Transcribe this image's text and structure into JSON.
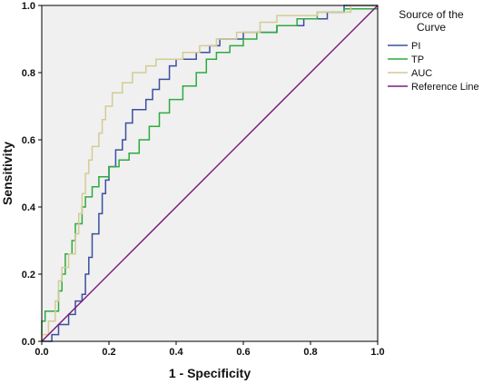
{
  "chart_data": {
    "type": "line",
    "xlabel": "1 - Specificity",
    "ylabel": "Sensitivity",
    "xlim": [
      0,
      1
    ],
    "ylim": [
      0,
      1
    ],
    "x_ticks": [
      "0.0",
      "0.2",
      "0.4",
      "0.6",
      "0.8",
      "1.0"
    ],
    "y_ticks": [
      "0.0",
      "0.2",
      "0.4",
      "0.6",
      "0.8",
      "1.0"
    ],
    "grid": false,
    "background_color": "#f0f0f0",
    "legend_position": "top-right, outside plot",
    "legend_title": "Source of the Curve",
    "series": [
      {
        "name": "PI",
        "color": "#3a4fa0",
        "points": [
          [
            0,
            0
          ],
          [
            0.03,
            0
          ],
          [
            0.03,
            0.02
          ],
          [
            0.05,
            0.02
          ],
          [
            0.05,
            0.05
          ],
          [
            0.08,
            0.05
          ],
          [
            0.08,
            0.08
          ],
          [
            0.1,
            0.08
          ],
          [
            0.1,
            0.12
          ],
          [
            0.12,
            0.12
          ],
          [
            0.12,
            0.14
          ],
          [
            0.13,
            0.14
          ],
          [
            0.13,
            0.2
          ],
          [
            0.14,
            0.2
          ],
          [
            0.14,
            0.25
          ],
          [
            0.15,
            0.25
          ],
          [
            0.15,
            0.32
          ],
          [
            0.17,
            0.32
          ],
          [
            0.17,
            0.38
          ],
          [
            0.18,
            0.38
          ],
          [
            0.18,
            0.44
          ],
          [
            0.19,
            0.44
          ],
          [
            0.19,
            0.48
          ],
          [
            0.2,
            0.48
          ],
          [
            0.2,
            0.52
          ],
          [
            0.22,
            0.52
          ],
          [
            0.22,
            0.57
          ],
          [
            0.24,
            0.57
          ],
          [
            0.24,
            0.6
          ],
          [
            0.25,
            0.6
          ],
          [
            0.25,
            0.65
          ],
          [
            0.27,
            0.65
          ],
          [
            0.27,
            0.69
          ],
          [
            0.31,
            0.69
          ],
          [
            0.31,
            0.72
          ],
          [
            0.33,
            0.72
          ],
          [
            0.33,
            0.75
          ],
          [
            0.35,
            0.75
          ],
          [
            0.35,
            0.78
          ],
          [
            0.38,
            0.78
          ],
          [
            0.38,
            0.82
          ],
          [
            0.4,
            0.82
          ],
          [
            0.4,
            0.84
          ],
          [
            0.46,
            0.84
          ],
          [
            0.46,
            0.86
          ],
          [
            0.5,
            0.86
          ],
          [
            0.5,
            0.88
          ],
          [
            0.53,
            0.88
          ],
          [
            0.53,
            0.9
          ],
          [
            0.6,
            0.9
          ],
          [
            0.6,
            0.92
          ],
          [
            0.7,
            0.92
          ],
          [
            0.7,
            0.94
          ],
          [
            0.78,
            0.94
          ],
          [
            0.78,
            0.96
          ],
          [
            0.85,
            0.96
          ],
          [
            0.85,
            0.98
          ],
          [
            0.9,
            0.98
          ],
          [
            0.9,
            1.0
          ],
          [
            1.0,
            1.0
          ]
        ]
      },
      {
        "name": "TP",
        "color": "#2eaa3f",
        "points": [
          [
            0,
            0
          ],
          [
            0,
            0.06
          ],
          [
            0.01,
            0.06
          ],
          [
            0.01,
            0.09
          ],
          [
            0.05,
            0.09
          ],
          [
            0.05,
            0.15
          ],
          [
            0.06,
            0.15
          ],
          [
            0.06,
            0.2
          ],
          [
            0.07,
            0.2
          ],
          [
            0.07,
            0.26
          ],
          [
            0.09,
            0.26
          ],
          [
            0.09,
            0.3
          ],
          [
            0.1,
            0.3
          ],
          [
            0.1,
            0.35
          ],
          [
            0.12,
            0.35
          ],
          [
            0.12,
            0.4
          ],
          [
            0.13,
            0.4
          ],
          [
            0.13,
            0.43
          ],
          [
            0.15,
            0.43
          ],
          [
            0.15,
            0.46
          ],
          [
            0.17,
            0.46
          ],
          [
            0.17,
            0.49
          ],
          [
            0.2,
            0.49
          ],
          [
            0.2,
            0.52
          ],
          [
            0.23,
            0.52
          ],
          [
            0.23,
            0.54
          ],
          [
            0.26,
            0.54
          ],
          [
            0.26,
            0.56
          ],
          [
            0.29,
            0.56
          ],
          [
            0.29,
            0.6
          ],
          [
            0.32,
            0.6
          ],
          [
            0.32,
            0.64
          ],
          [
            0.35,
            0.64
          ],
          [
            0.35,
            0.68
          ],
          [
            0.38,
            0.68
          ],
          [
            0.38,
            0.72
          ],
          [
            0.42,
            0.72
          ],
          [
            0.42,
            0.76
          ],
          [
            0.46,
            0.76
          ],
          [
            0.46,
            0.8
          ],
          [
            0.49,
            0.8
          ],
          [
            0.49,
            0.84
          ],
          [
            0.52,
            0.84
          ],
          [
            0.52,
            0.86
          ],
          [
            0.56,
            0.86
          ],
          [
            0.56,
            0.88
          ],
          [
            0.6,
            0.88
          ],
          [
            0.6,
            0.9
          ],
          [
            0.64,
            0.9
          ],
          [
            0.64,
            0.92
          ],
          [
            0.7,
            0.92
          ],
          [
            0.7,
            0.94
          ],
          [
            0.76,
            0.94
          ],
          [
            0.76,
            0.96
          ],
          [
            0.82,
            0.96
          ],
          [
            0.82,
            0.98
          ],
          [
            0.9,
            0.98
          ],
          [
            0.9,
            0.99
          ],
          [
            1.0,
            0.99
          ]
        ]
      },
      {
        "name": "AUC",
        "color": "#d2cc94",
        "points": [
          [
            0,
            0
          ],
          [
            0,
            0.02
          ],
          [
            0.02,
            0.02
          ],
          [
            0.02,
            0.06
          ],
          [
            0.04,
            0.06
          ],
          [
            0.04,
            0.12
          ],
          [
            0.05,
            0.12
          ],
          [
            0.05,
            0.18
          ],
          [
            0.06,
            0.18
          ],
          [
            0.06,
            0.22
          ],
          [
            0.08,
            0.22
          ],
          [
            0.08,
            0.26
          ],
          [
            0.1,
            0.26
          ],
          [
            0.1,
            0.32
          ],
          [
            0.11,
            0.32
          ],
          [
            0.11,
            0.38
          ],
          [
            0.12,
            0.38
          ],
          [
            0.12,
            0.44
          ],
          [
            0.13,
            0.44
          ],
          [
            0.13,
            0.5
          ],
          [
            0.14,
            0.5
          ],
          [
            0.14,
            0.54
          ],
          [
            0.15,
            0.54
          ],
          [
            0.15,
            0.58
          ],
          [
            0.17,
            0.58
          ],
          [
            0.17,
            0.62
          ],
          [
            0.18,
            0.62
          ],
          [
            0.18,
            0.66
          ],
          [
            0.19,
            0.66
          ],
          [
            0.19,
            0.7
          ],
          [
            0.21,
            0.7
          ],
          [
            0.21,
            0.74
          ],
          [
            0.24,
            0.74
          ],
          [
            0.24,
            0.77
          ],
          [
            0.27,
            0.77
          ],
          [
            0.27,
            0.8
          ],
          [
            0.31,
            0.8
          ],
          [
            0.31,
            0.82
          ],
          [
            0.34,
            0.82
          ],
          [
            0.34,
            0.84
          ],
          [
            0.42,
            0.84
          ],
          [
            0.42,
            0.86
          ],
          [
            0.47,
            0.86
          ],
          [
            0.47,
            0.88
          ],
          [
            0.52,
            0.88
          ],
          [
            0.52,
            0.9
          ],
          [
            0.58,
            0.9
          ],
          [
            0.58,
            0.92
          ],
          [
            0.65,
            0.92
          ],
          [
            0.65,
            0.95
          ],
          [
            0.7,
            0.95
          ],
          [
            0.7,
            0.97
          ],
          [
            0.82,
            0.97
          ],
          [
            0.82,
            0.98
          ],
          [
            0.92,
            0.98
          ],
          [
            0.92,
            1.0
          ],
          [
            1.0,
            1.0
          ]
        ]
      },
      {
        "name": "Reference Line",
        "color": "#7d1a7d",
        "points": [
          [
            0,
            0
          ],
          [
            1,
            1
          ]
        ]
      }
    ]
  }
}
